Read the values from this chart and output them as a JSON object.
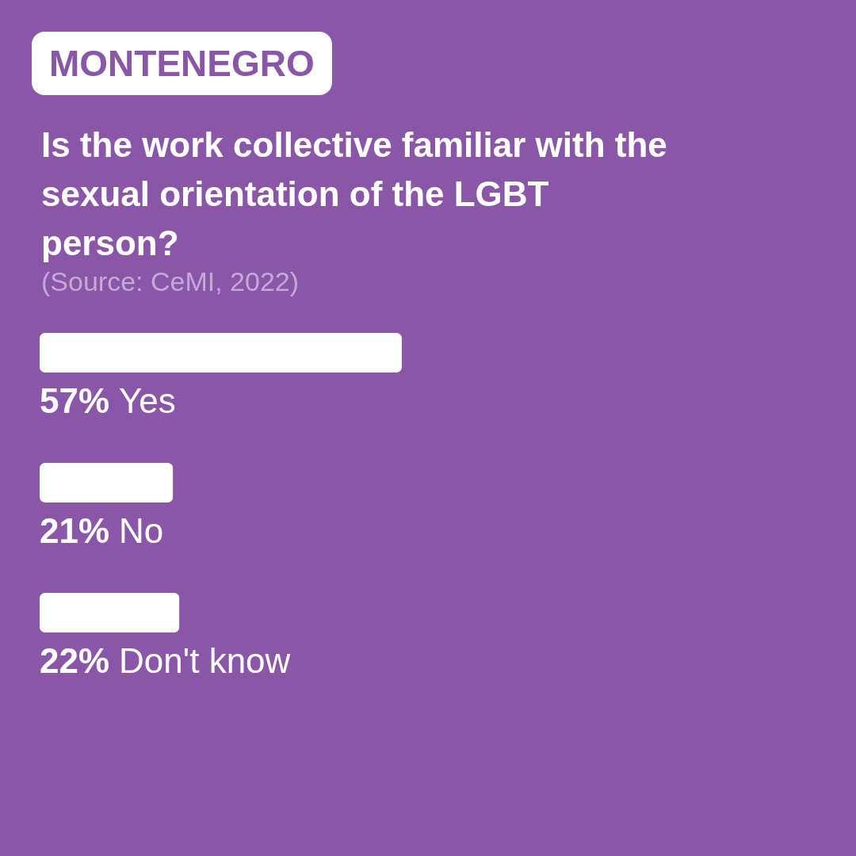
{
  "chart_data": {
    "type": "bar",
    "orientation": "horizontal",
    "title": "Is the work collective familiar with the sexual orientation of the LGBT person?",
    "annotations": [
      "MONTENEGRO",
      "(Source: CeMI, 2022)"
    ],
    "categories": [
      "Yes",
      "No",
      "Don't know"
    ],
    "values": [
      57,
      21,
      22
    ],
    "value_labels": [
      "57%",
      "21%",
      "22%"
    ],
    "color": "#ffffff"
  }
}
